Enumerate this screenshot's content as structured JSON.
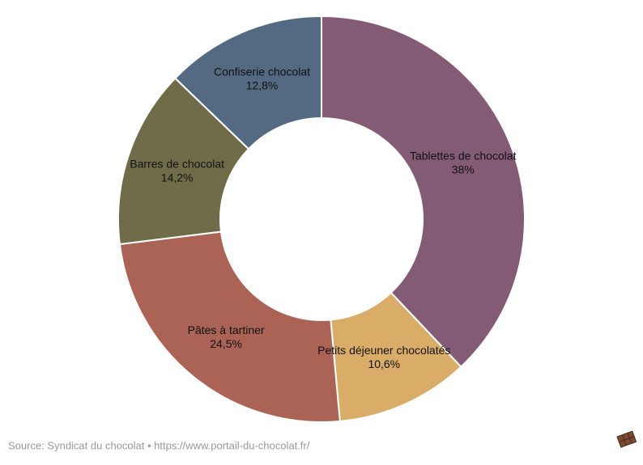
{
  "chart_data": {
    "type": "donut",
    "categories": [
      "Tablettes de chocolat",
      "Petits déjeuner chocolatés",
      "Pâtes à tartiner",
      "Barres de chocolat",
      "Confiserie chocolat"
    ],
    "values": [
      38,
      10.6,
      24.5,
      14.2,
      12.8
    ],
    "value_labels": [
      "38%",
      "10,6%",
      "24,5%",
      "14,2%",
      "12,8%"
    ],
    "colors": [
      "#845b74",
      "#d9ad68",
      "#ab6355",
      "#706c4a",
      "#546a82"
    ],
    "source": "Source: Syndicat du chocolat • https://www.portail-du-chocolat.fr/"
  }
}
